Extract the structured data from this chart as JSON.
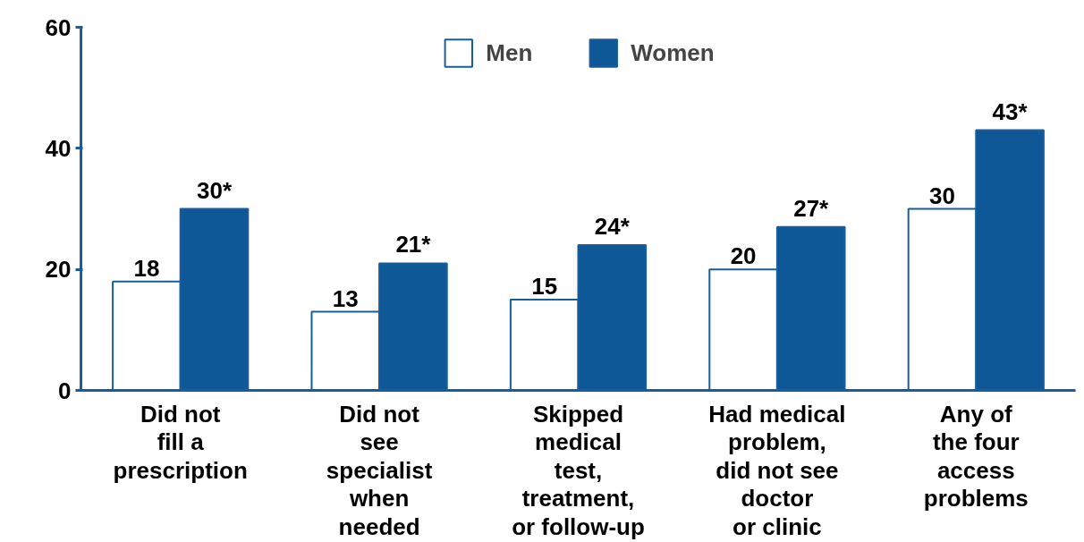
{
  "chart_data": {
    "type": "bar",
    "categories": [
      "Did not\nfill a\nprescription",
      "Did not\nsee\nspecialist\nwhen\nneeded",
      "Skipped\nmedical\ntest,\ntreatment,\nor follow-up",
      "Had medical\nproblem,\ndid not see\ndoctor\nor clinic",
      "Any of\nthe four\naccess\nproblems"
    ],
    "series": [
      {
        "name": "Men",
        "color": "#ffffff",
        "values": [
          18,
          13,
          15,
          20,
          30
        ],
        "value_labels": [
          "18",
          "13",
          "15",
          "20",
          "30"
        ]
      },
      {
        "name": "Women",
        "color": "#0e5898",
        "values": [
          30,
          21,
          24,
          27,
          43
        ],
        "value_labels": [
          "30*",
          "21*",
          "24*",
          "27*",
          "43*"
        ]
      }
    ],
    "ylim": [
      0,
      60
    ],
    "yticks": [
      0,
      20,
      40,
      60
    ],
    "grid": false,
    "legend": "top"
  }
}
